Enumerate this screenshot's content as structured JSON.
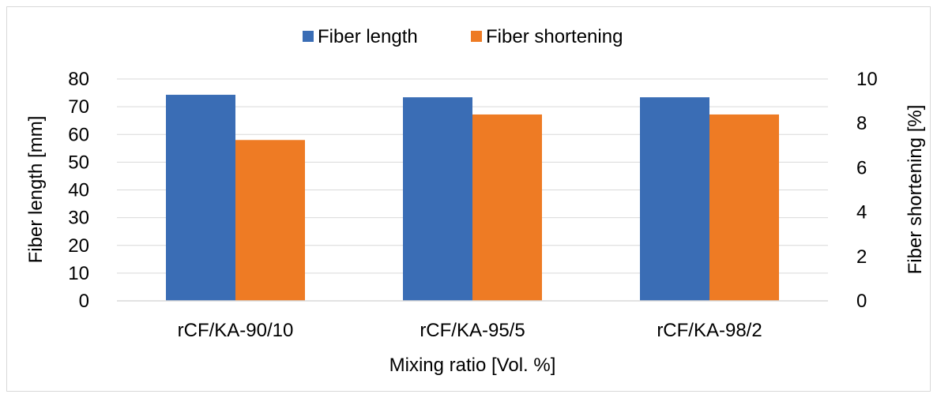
{
  "chart_data": {
    "type": "bar",
    "categories": [
      "rCF/KA-90/10",
      "rCF/KA-95/5",
      "rCF/KA-98/2"
    ],
    "series": [
      {
        "name": "Fiber length",
        "axis": "left",
        "color": "#3a6db5",
        "values": [
          74.3,
          73.4,
          73.4
        ]
      },
      {
        "name": "Fiber shortening",
        "axis": "right",
        "color": "#ee7b24",
        "values": [
          7.25,
          8.4,
          8.4
        ]
      }
    ],
    "xlabel": "Mixing ratio [Vol. %]",
    "ylabel": "Fiber length [mm]",
    "y2label": "Fiber shortening [%]",
    "ylim": [
      0,
      80
    ],
    "y2lim": [
      0,
      10
    ],
    "yticks": [
      "0",
      "10",
      "20",
      "30",
      "40",
      "50",
      "60",
      "70",
      "80"
    ],
    "y2ticks": [
      "0",
      "2",
      "4",
      "6",
      "8",
      "10"
    ],
    "grid": true,
    "legend_position": "top-center"
  }
}
